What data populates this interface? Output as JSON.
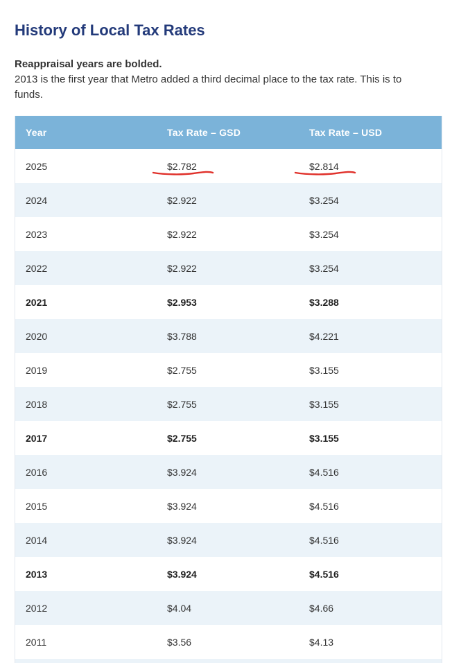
{
  "heading": "History of Local Tax Rates",
  "intro": {
    "bold_note": "Reappraisal years are bolded.",
    "description": "2013 is the first year that Metro added a third decimal place to the tax rate. This is to",
    "description_cont": "funds."
  },
  "table": {
    "headers": [
      "Year",
      "Tax Rate – GSD",
      "Tax Rate – USD"
    ],
    "rows": [
      {
        "year": "2025",
        "gsd": "$2.782",
        "usd": "$2.814",
        "bold": false
      },
      {
        "year": "2024",
        "gsd": "$2.922",
        "usd": "$3.254",
        "bold": false
      },
      {
        "year": "2023",
        "gsd": "$2.922",
        "usd": "$3.254",
        "bold": false
      },
      {
        "year": "2022",
        "gsd": "$2.922",
        "usd": "$3.254",
        "bold": false
      },
      {
        "year": "2021",
        "gsd": "$2.953",
        "usd": "$3.288",
        "bold": true
      },
      {
        "year": "2020",
        "gsd": "$3.788",
        "usd": "$4.221",
        "bold": false
      },
      {
        "year": "2019",
        "gsd": "$2.755",
        "usd": "$3.155",
        "bold": false
      },
      {
        "year": "2018",
        "gsd": "$2.755",
        "usd": "$3.155",
        "bold": false
      },
      {
        "year": "2017",
        "gsd": "$2.755",
        "usd": "$3.155",
        "bold": true
      },
      {
        "year": "2016",
        "gsd": "$3.924",
        "usd": "$4.516",
        "bold": false
      },
      {
        "year": "2015",
        "gsd": "$3.924",
        "usd": "$4.516",
        "bold": false
      },
      {
        "year": "2014",
        "gsd": "$3.924",
        "usd": "$4.516",
        "bold": false
      },
      {
        "year": "2013",
        "gsd": "$3.924",
        "usd": "$4.516",
        "bold": true
      },
      {
        "year": "2012",
        "gsd": "$4.04",
        "usd": "$4.66",
        "bold": false
      },
      {
        "year": "2011",
        "gsd": "$3.56",
        "usd": "$4.13",
        "bold": false
      },
      {
        "year": "",
        "gsd": "",
        "usd": "",
        "bold": false
      }
    ]
  },
  "colors": {
    "heading": "#233a7a",
    "header_bg": "#7bb3d9",
    "stripe_bg": "#ebf3f9",
    "annotation_red": "#e0302a"
  }
}
